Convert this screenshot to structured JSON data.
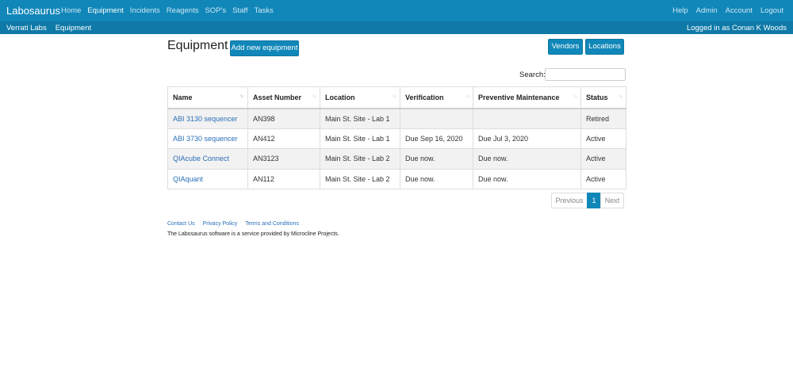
{
  "app": {
    "brand": "Labosaurus"
  },
  "nav": {
    "left": [
      "Home",
      "Equipment",
      "Incidents",
      "Reagents",
      "SOP's",
      "Staff",
      "Tasks"
    ],
    "right": [
      "Help",
      "Admin",
      "Account",
      "Logout"
    ]
  },
  "subnav": {
    "left": [
      "Verrati Labs",
      "Equipment"
    ],
    "user": "Logged in as Conan K Woods"
  },
  "page": {
    "title": "Equipment",
    "add_label": "Add new equipment",
    "vendors_label": "Vendors",
    "locations_label": "Locations"
  },
  "search": {
    "label": "Search:",
    "value": ""
  },
  "table": {
    "headers": [
      "Name",
      "Asset Number",
      "Location",
      "Verification",
      "Preventive Maintenance",
      "Status"
    ],
    "rows": [
      [
        "ABI 3130 sequencer",
        "AN398",
        "Main St. Site - Lab 1",
        "",
        "",
        "Retired"
      ],
      [
        "ABI 3730 sequencer",
        "AN412",
        "Main St. Site - Lab 1",
        "Due Sep 16, 2020",
        "Due Jul 3, 2020",
        "Active"
      ],
      [
        "QIAcube Connect",
        "AN3123",
        "Main St. Site - Lab 2",
        "Due now.",
        "Due now.",
        "Active"
      ],
      [
        "QIAquant",
        "AN112",
        "Main St. Site - Lab 2",
        "Due now.",
        "Due now.",
        "Active"
      ]
    ]
  },
  "pagination": {
    "previous": "Previous",
    "page": "1",
    "next": "Next"
  },
  "footer": {
    "links": [
      "Contact Us",
      "Privacy Policy",
      "Terms and Conditions"
    ],
    "note": "The Labosaurus software is a service provided by Microcline Projects."
  },
  "colors": {
    "accent": "#1187b9",
    "due": "#c0392b",
    "link": "#2a6fb8"
  }
}
